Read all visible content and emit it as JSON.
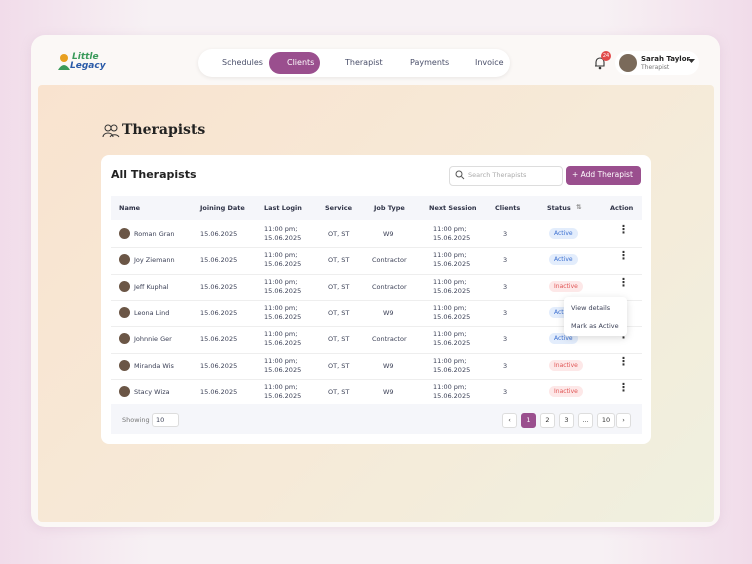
{
  "nav": {
    "logo": [
      "Little",
      "Legacy"
    ],
    "tabs": [
      "Schedules",
      "Clients",
      "Therapist",
      "Payments",
      "Invoice"
    ],
    "active_tab": 1,
    "notification_count": "24",
    "user": {
      "name": "Sarah Taylor",
      "role": "Therapist"
    }
  },
  "page": {
    "title": "Therapists"
  },
  "card": {
    "title": "All Therapists",
    "search_placeholder": "Search Therapists",
    "add_button": "Add Therapist"
  },
  "table": {
    "columns": [
      "Name",
      "Joining Date",
      "Last Login",
      "Service",
      "Job Type",
      "Next Session",
      "Clients",
      "Status",
      "Action"
    ],
    "rows": [
      {
        "name": "Roman Gran",
        "joining": "15.06.2025",
        "last_login": [
          "11:00 pm;",
          "15.06.2025"
        ],
        "service": "OT, ST",
        "job_type": "W9",
        "next_session": [
          "11:00 pm;",
          "15.06.2025"
        ],
        "clients": 3,
        "status": "Active"
      },
      {
        "name": "Joy Ziemann",
        "joining": "15.06.2025",
        "last_login": [
          "11:00 pm;",
          "15.06.2025"
        ],
        "service": "OT, ST",
        "job_type": "Contractor",
        "next_session": [
          "11:00 pm;",
          "15.06.2025"
        ],
        "clients": 3,
        "status": "Active"
      },
      {
        "name": "Jeff Kuphal",
        "joining": "15.06.2025",
        "last_login": [
          "11:00 pm;",
          "15.06.2025"
        ],
        "service": "OT, ST",
        "job_type": "Contractor",
        "next_session": [
          "11:00 pm;",
          "15.06.2025"
        ],
        "clients": 3,
        "status": "Inactive"
      },
      {
        "name": "Leona Lind",
        "joining": "15.06.2025",
        "last_login": [
          "11:00 pm;",
          "15.06.2025"
        ],
        "service": "OT, ST",
        "job_type": "W9",
        "next_session": [
          "11:00 pm;",
          "15.06.2025"
        ],
        "clients": 3,
        "status": "Active"
      },
      {
        "name": "Johnnie Ger",
        "joining": "15.06.2025",
        "last_login": [
          "11:00 pm;",
          "15.06.2025"
        ],
        "service": "OT, ST",
        "job_type": "Contractor",
        "next_session": [
          "11:00 pm;",
          "15.06.2025"
        ],
        "clients": 3,
        "status": "Active"
      },
      {
        "name": "Miranda Wis",
        "joining": "15.06.2025",
        "last_login": [
          "11:00 pm;",
          "15.06.2025"
        ],
        "service": "OT, ST",
        "job_type": "W9",
        "next_session": [
          "11:00 pm;",
          "15.06.2025"
        ],
        "clients": 3,
        "status": "Inactive"
      },
      {
        "name": "Stacy Wiza",
        "joining": "15.06.2025",
        "last_login": [
          "11:00 pm;",
          "15.06.2025"
        ],
        "service": "OT, ST",
        "job_type": "W9",
        "next_session": [
          "11:00 pm;",
          "15.06.2025"
        ],
        "clients": 3,
        "status": "Inactive"
      }
    ]
  },
  "menu": {
    "items": [
      "View details",
      "Mark as Active"
    ]
  },
  "footer": {
    "showing_label": "Showing",
    "page_size": "10",
    "pages": [
      "1",
      "2",
      "3",
      "...",
      "10"
    ],
    "current_page": 0
  }
}
